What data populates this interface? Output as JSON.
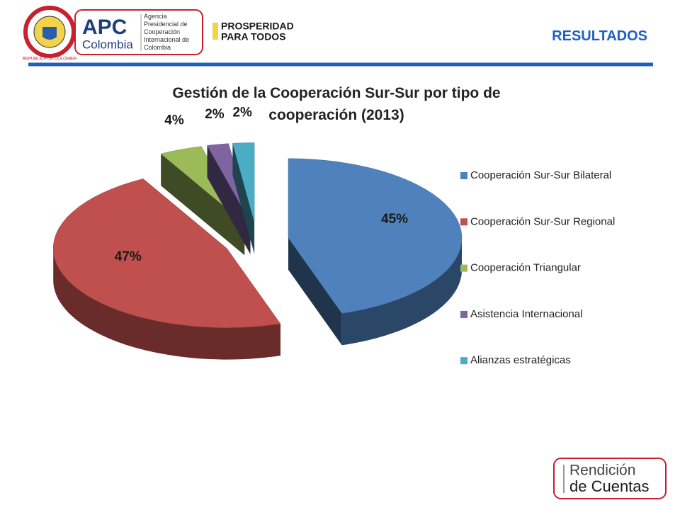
{
  "header": {
    "seal_text": "REPÚBLICA DE COLOMBIA",
    "apc": "APC",
    "apc_country": "Colombia",
    "agency": "Agencia Presidencial de Cooperación Internacional de Colombia",
    "slogan_1": "PROSPERIDAD",
    "slogan_2": "PARA TODOS",
    "section": "RESULTADOS"
  },
  "footer": {
    "line_1": "Rendición",
    "line_2": "de Cuentas"
  },
  "chart_data": {
    "type": "pie",
    "title": "Gestión de la Cooperación Sur-Sur por tipo de cooperación (2013)",
    "categories": [
      "Cooperación Sur-Sur Bilateral",
      "Cooperación Sur-Sur Regional",
      "Cooperación Triangular",
      "Asistencia Internacional",
      "Alianzas estratégicas"
    ],
    "values": [
      45,
      47,
      4,
      2,
      2
    ],
    "value_labels": [
      "45%",
      "47%",
      "4%",
      "2%",
      "2%"
    ],
    "colors": [
      "#4f81bd",
      "#c0504d",
      "#9bbb59",
      "#8064a2",
      "#4bacc6"
    ],
    "legend": "right"
  }
}
